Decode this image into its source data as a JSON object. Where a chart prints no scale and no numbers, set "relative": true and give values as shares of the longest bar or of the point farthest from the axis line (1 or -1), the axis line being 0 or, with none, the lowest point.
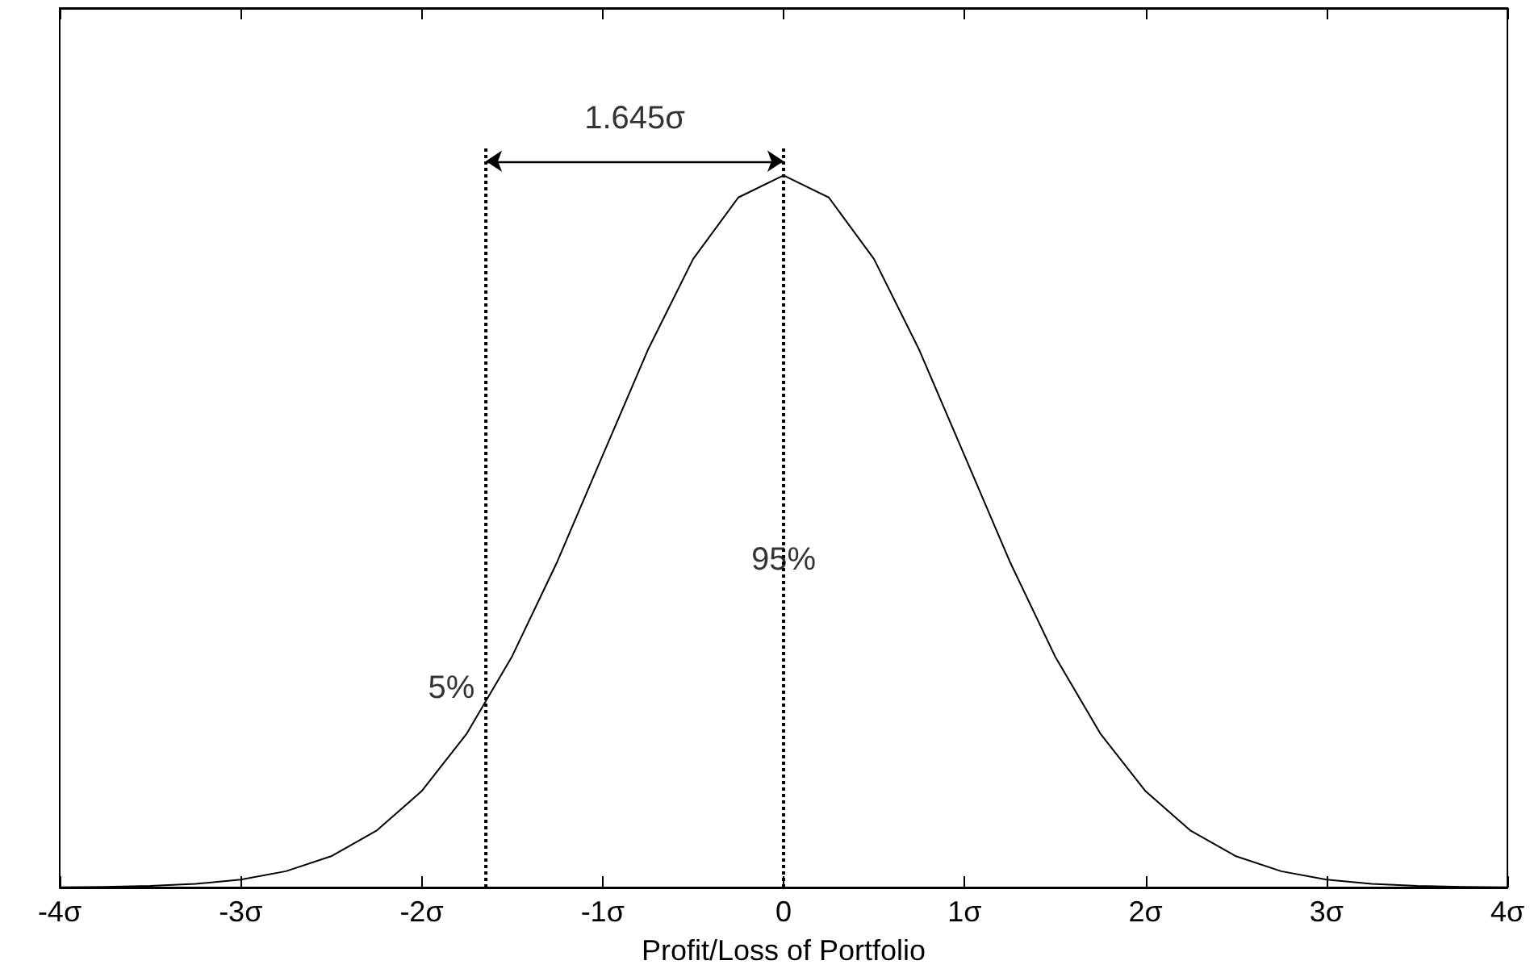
{
  "chart_data": {
    "type": "line",
    "relative": true,
    "xlabel": "Profit/Loss of Portfolio",
    "x": [
      -4,
      -3.75,
      -3.5,
      -3.25,
      -3,
      -2.75,
      -2.5,
      -2.25,
      -2,
      -1.75,
      -1.5,
      -1.25,
      -1,
      -0.75,
      -0.5,
      -0.25,
      0,
      0.25,
      0.5,
      0.75,
      1,
      1.25,
      1.5,
      1.75,
      2,
      2.25,
      2.5,
      2.75,
      3,
      3.25,
      3.5,
      3.75,
      4
    ],
    "series": [
      {
        "color": "#000000",
        "values": [
          0.0003,
          0.0009,
          0.0022,
          0.0051,
          0.0111,
          0.0228,
          0.0439,
          0.0796,
          0.1353,
          0.2163,
          0.3247,
          0.4578,
          0.6065,
          0.7548,
          0.8825,
          0.969,
          1,
          0.969,
          0.8825,
          0.7548,
          0.6065,
          0.4578,
          0.3247,
          0.2163,
          0.1353,
          0.0796,
          0.0439,
          0.0228,
          0.0111,
          0.0051,
          0.0022,
          0.0009,
          0.0003
        ]
      }
    ],
    "xlim": [
      -4,
      4
    ],
    "xticks": [
      {
        "value": -4,
        "label": "-4σ"
      },
      {
        "value": -3,
        "label": "-3σ"
      },
      {
        "value": -2,
        "label": "-2σ"
      },
      {
        "value": -1,
        "label": "-1σ"
      },
      0,
      {
        "value": 1,
        "label": "1σ"
      },
      {
        "value": 2,
        "label": "2σ"
      },
      {
        "value": 3,
        "label": "3σ"
      },
      {
        "value": 4,
        "label": "4σ"
      }
    ],
    "ref_lines": [
      {
        "axis": "x",
        "value": -1.645,
        "color": "#000000",
        "line_style": "dotted"
      },
      {
        "axis": "x",
        "value": 0,
        "color": "#000000",
        "line_style": "dotted"
      }
    ],
    "annotations": [
      "1.645σ",
      {
        "text": "95%",
        "x": 0,
        "y": 0.46
      },
      "5%"
    ],
    "marker": "none",
    "line_style": "solid"
  }
}
